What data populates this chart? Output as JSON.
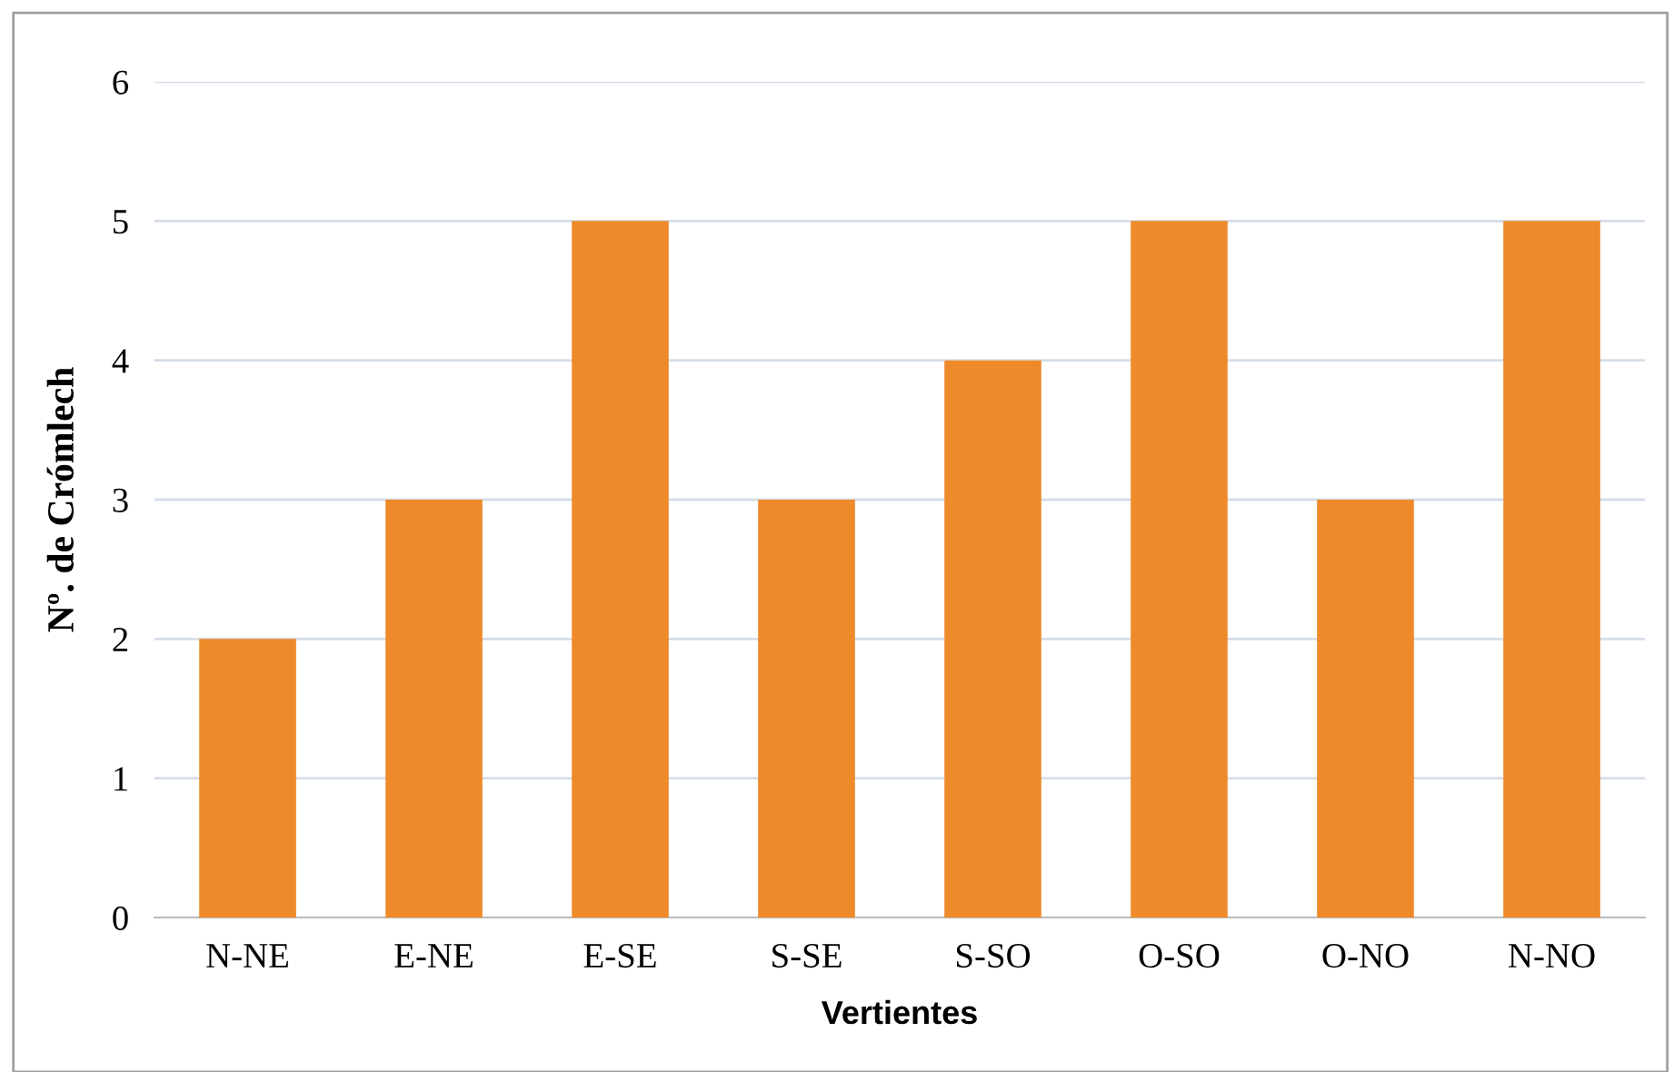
{
  "chart_data": {
    "type": "bar",
    "xlabel": "Vertientes",
    "ylabel": "Nº. de Crómlech",
    "categories": [
      "N-NE",
      "E-NE",
      "E-SE",
      "S-SE",
      "S-SO",
      "O-SO",
      "O-NO",
      "N-NO"
    ],
    "values": [
      2,
      3,
      5,
      3,
      4,
      5,
      3,
      5
    ],
    "color": "#ee8a2a",
    "ylim": [
      0,
      6
    ],
    "yticks": [
      0,
      1,
      2,
      3,
      4,
      5,
      6
    ],
    "grid": "y"
  }
}
